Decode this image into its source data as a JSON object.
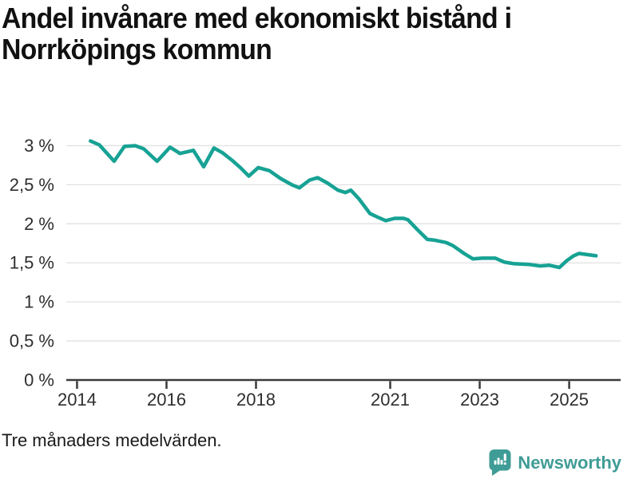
{
  "header": {
    "title_line1": "Andel invånare med ekonomiskt bistånd i",
    "title_line2": "Norrköpings kommun"
  },
  "footer": {
    "note": "Tre månaders medelvärden.",
    "brand": "Newsworthy"
  },
  "colors": {
    "line": "#17a294",
    "grid": "#e1e1e1",
    "axis": "#3a3a3a",
    "tick_text": "#2e2e2e",
    "title": "#111111",
    "logo": "#3f9c96"
  },
  "chart_data": {
    "type": "line",
    "title": "Andel invånare med ekonomiskt bistånd i Norrköpings kommun",
    "series_name": "Andel invånare med ekonomiskt bistånd (%)",
    "note": "Tre månaders medelvärden.",
    "xlabel": "",
    "ylabel": "",
    "grid": "horizontal",
    "legend": "none",
    "xlim": [
      2013.76,
      2026.15
    ],
    "ylim": [
      0,
      3.25
    ],
    "x_ticks": [
      2014,
      2016,
      2018,
      2021,
      2023,
      2025
    ],
    "x_tick_labels": [
      "2014",
      "2016",
      "2018",
      "2021",
      "2023",
      "2025"
    ],
    "y_ticks": [
      0,
      0.5,
      1,
      1.5,
      2,
      2.5,
      3
    ],
    "y_tick_labels": [
      "0 %",
      "0,5 %",
      "1 %",
      "1,5 %",
      "2 %",
      "2,5 %",
      "3 %"
    ],
    "x": [
      2014.3,
      2014.5,
      2014.83,
      2015.06,
      2015.3,
      2015.49,
      2015.79,
      2016.08,
      2016.3,
      2016.45,
      2016.6,
      2016.83,
      2017.06,
      2017.25,
      2017.45,
      2017.65,
      2017.84,
      2018.05,
      2018.3,
      2018.55,
      2018.8,
      2018.97,
      2019.2,
      2019.38,
      2019.6,
      2019.83,
      2020.0,
      2020.12,
      2020.3,
      2020.55,
      2020.7,
      2020.9,
      2021.1,
      2021.3,
      2021.4,
      2021.6,
      2021.83,
      2022.0,
      2022.25,
      2022.4,
      2022.65,
      2022.85,
      2023.05,
      2023.35,
      2023.55,
      2023.75,
      2024.1,
      2024.35,
      2024.55,
      2024.78,
      2024.95,
      2025.1,
      2025.22,
      2025.6
    ],
    "y": [
      3.06,
      3.01,
      2.8,
      2.99,
      3.0,
      2.96,
      2.8,
      2.98,
      2.9,
      2.92,
      2.94,
      2.73,
      2.97,
      2.91,
      2.82,
      2.72,
      2.61,
      2.72,
      2.68,
      2.58,
      2.5,
      2.46,
      2.56,
      2.59,
      2.52,
      2.43,
      2.4,
      2.43,
      2.32,
      2.13,
      2.09,
      2.04,
      2.07,
      2.07,
      2.05,
      1.93,
      1.8,
      1.79,
      1.76,
      1.72,
      1.62,
      1.55,
      1.56,
      1.56,
      1.51,
      1.49,
      1.48,
      1.46,
      1.47,
      1.44,
      1.53,
      1.59,
      1.62,
      1.59
    ]
  }
}
